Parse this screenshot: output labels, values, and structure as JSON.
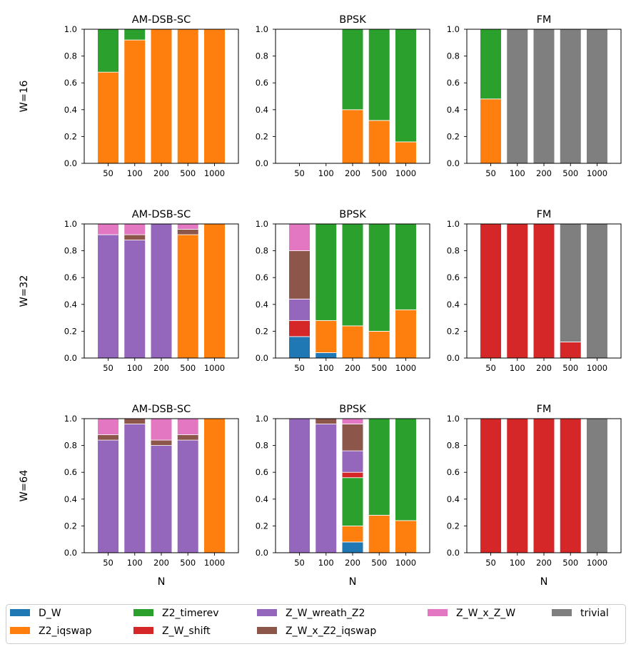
{
  "chart_data": {
    "type": "bar",
    "stacked": true,
    "row_labels": [
      "W=16",
      "W=32",
      "W=64"
    ],
    "column_titles": [
      "AM-DSB-SC",
      "BPSK",
      "FM"
    ],
    "categories": [
      "50",
      "100",
      "200",
      "500",
      "1000"
    ],
    "xlabel": "N",
    "ylim": [
      0,
      1.0
    ],
    "yticks": [
      "0.0",
      "0.2",
      "0.4",
      "0.6",
      "0.8",
      "1.0"
    ],
    "grid": false,
    "legend_position": "bottom",
    "series_order": [
      "D_W",
      "Z2_iqswap",
      "Z2_timerev",
      "Z_W_shift",
      "Z_W_wreath_Z2",
      "Z_W_x_Z2_iqswap",
      "Z_W_x_Z_W",
      "trivial"
    ],
    "legend": [
      {
        "name": "D_W",
        "color": "#1f77b4"
      },
      {
        "name": "Z2_timerev",
        "color": "#2ca02c"
      },
      {
        "name": "Z_W_wreath_Z2",
        "color": "#9467bd"
      },
      {
        "name": "Z_W_x_Z_W",
        "color": "#e377c2"
      },
      {
        "name": "trivial",
        "color": "#7f7f7f"
      },
      {
        "name": "Z2_iqswap",
        "color": "#ff7f0e"
      },
      {
        "name": "Z_W_shift",
        "color": "#d62728"
      },
      {
        "name": "Z_W_x_Z2_iqswap",
        "color": "#8c564b"
      }
    ],
    "panels": [
      {
        "row": "W=16",
        "title": "AM-DSB-SC",
        "bars": [
          {
            "Z2_iqswap": 0.68,
            "Z2_timerev": 0.32
          },
          {
            "Z2_iqswap": 0.92,
            "Z2_timerev": 0.08
          },
          {
            "Z2_iqswap": 1.0
          },
          {
            "Z2_iqswap": 1.0
          },
          {
            "Z2_iqswap": 1.0
          }
        ]
      },
      {
        "row": "W=16",
        "title": "BPSK",
        "bars": [
          {},
          {},
          {
            "Z2_iqswap": 0.4,
            "Z2_timerev": 0.6
          },
          {
            "Z2_iqswap": 0.32,
            "Z2_timerev": 0.68
          },
          {
            "Z2_iqswap": 0.16,
            "Z2_timerev": 0.84
          }
        ]
      },
      {
        "row": "W=16",
        "title": "FM",
        "bars": [
          {
            "Z2_iqswap": 0.48,
            "Z2_timerev": 0.52
          },
          {
            "trivial": 1.0
          },
          {
            "trivial": 1.0
          },
          {
            "trivial": 1.0
          },
          {
            "trivial": 1.0
          }
        ]
      },
      {
        "row": "W=32",
        "title": "AM-DSB-SC",
        "bars": [
          {
            "Z_W_wreath_Z2": 0.92,
            "Z_W_x_Z_W": 0.08
          },
          {
            "Z_W_wreath_Z2": 0.88,
            "Z_W_x_Z2_iqswap": 0.04,
            "Z_W_x_Z_W": 0.08
          },
          {
            "Z_W_wreath_Z2": 1.0
          },
          {
            "Z2_iqswap": 0.92,
            "Z_W_x_Z2_iqswap": 0.04,
            "Z_W_x_Z_W": 0.04
          },
          {
            "Z2_iqswap": 1.0
          }
        ]
      },
      {
        "row": "W=32",
        "title": "BPSK",
        "bars": [
          {
            "D_W": 0.16,
            "Z_W_shift": 0.12,
            "Z_W_wreath_Z2": 0.16,
            "Z_W_x_Z2_iqswap": 0.36,
            "Z_W_x_Z_W": 0.2
          },
          {
            "D_W": 0.04,
            "Z2_iqswap": 0.24,
            "Z2_timerev": 0.72
          },
          {
            "Z2_iqswap": 0.24,
            "Z2_timerev": 0.76
          },
          {
            "Z2_iqswap": 0.2,
            "Z2_timerev": 0.8
          },
          {
            "Z2_iqswap": 0.36,
            "Z2_timerev": 0.64
          }
        ]
      },
      {
        "row": "W=32",
        "title": "FM",
        "bars": [
          {
            "Z_W_shift": 1.0
          },
          {
            "Z_W_shift": 1.0
          },
          {
            "Z_W_shift": 1.0
          },
          {
            "Z_W_shift": 0.12,
            "trivial": 0.88
          },
          {
            "trivial": 1.0
          }
        ]
      },
      {
        "row": "W=64",
        "title": "AM-DSB-SC",
        "bars": [
          {
            "Z_W_wreath_Z2": 0.84,
            "Z_W_x_Z2_iqswap": 0.04,
            "Z_W_x_Z_W": 0.12
          },
          {
            "Z_W_wreath_Z2": 0.96,
            "Z_W_x_Z2_iqswap": 0.04
          },
          {
            "Z_W_wreath_Z2": 0.8,
            "Z_W_x_Z2_iqswap": 0.04,
            "Z_W_x_Z_W": 0.16
          },
          {
            "Z_W_wreath_Z2": 0.84,
            "Z_W_x_Z2_iqswap": 0.04,
            "Z_W_x_Z_W": 0.12
          },
          {
            "Z2_iqswap": 1.0
          }
        ]
      },
      {
        "row": "W=64",
        "title": "BPSK",
        "bars": [
          {
            "Z_W_wreath_Z2": 1.0
          },
          {
            "Z_W_wreath_Z2": 0.96,
            "Z_W_x_Z2_iqswap": 0.04
          },
          {
            "D_W": 0.08,
            "Z2_iqswap": 0.12,
            "Z2_timerev": 0.36,
            "Z_W_shift": 0.04,
            "Z_W_wreath_Z2": 0.16,
            "Z_W_x_Z2_iqswap": 0.2,
            "Z_W_x_Z_W": 0.04
          },
          {
            "Z2_iqswap": 0.28,
            "Z2_timerev": 0.72
          },
          {
            "Z2_iqswap": 0.24,
            "Z2_timerev": 0.76
          }
        ]
      },
      {
        "row": "W=64",
        "title": "FM",
        "bars": [
          {
            "Z_W_shift": 1.0
          },
          {
            "Z_W_shift": 1.0
          },
          {
            "Z_W_shift": 1.0
          },
          {
            "Z_W_shift": 1.0
          },
          {
            "trivial": 1.0
          }
        ]
      }
    ]
  }
}
